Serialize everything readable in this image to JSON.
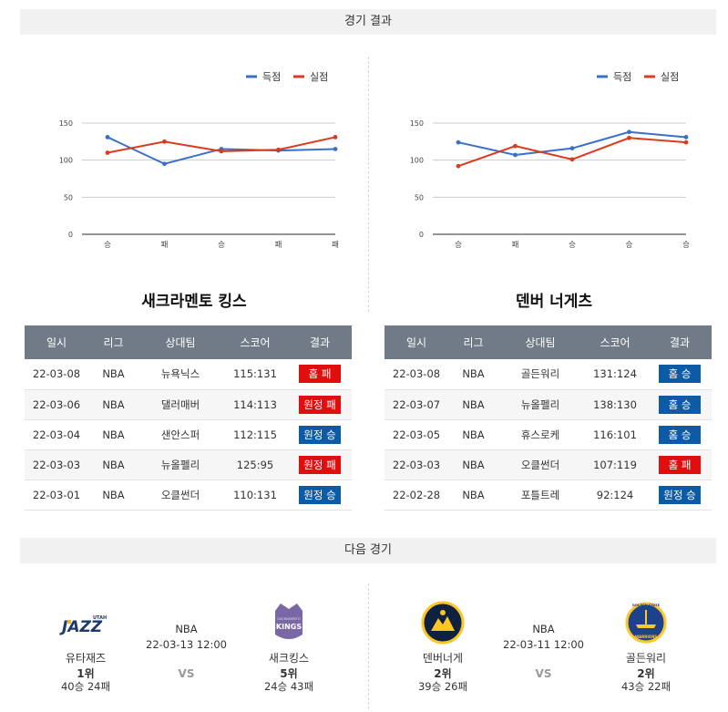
{
  "sections": {
    "results_title": "경기 결과",
    "next_title": "다음 경기"
  },
  "legend": {
    "scored": "득점",
    "conceded": "실점"
  },
  "colors": {
    "scored": "#3b6fc9",
    "conceded": "#d93b1e",
    "win": "#0d5aa7",
    "loss": "#e10e0e",
    "header": "#707b87"
  },
  "chart_data": [
    {
      "type": "line",
      "categories": [
        "승",
        "패",
        "승",
        "패",
        "패"
      ],
      "series": [
        {
          "name": "득점",
          "values": [
            131,
            95,
            115,
            113,
            115
          ]
        },
        {
          "name": "실점",
          "values": [
            110,
            125,
            112,
            114,
            131
          ]
        }
      ],
      "yticks": [
        0,
        50,
        100,
        150
      ],
      "ylim": [
        0,
        150
      ],
      "legend": "top-right",
      "grid": true
    },
    {
      "type": "line",
      "categories": [
        "승",
        "패",
        "승",
        "승",
        "승"
      ],
      "series": [
        {
          "name": "득점",
          "values": [
            124,
            107,
            116,
            138,
            131
          ]
        },
        {
          "name": "실점",
          "values": [
            92,
            119,
            101,
            130,
            124
          ]
        }
      ],
      "yticks": [
        0,
        50,
        100,
        150
      ],
      "ylim": [
        0,
        150
      ],
      "legend": "top-right",
      "grid": true
    }
  ],
  "teams": [
    {
      "name": "새크라멘토 킹스",
      "columns": [
        "일시",
        "리그",
        "상대팀",
        "스코어",
        "결과"
      ],
      "rows": [
        {
          "date": "22-03-08",
          "league": "NBA",
          "opponent": "뉴욕닉스",
          "score": "115:131",
          "result": "홈 패",
          "win": false
        },
        {
          "date": "22-03-06",
          "league": "NBA",
          "opponent": "댈러매버",
          "score": "114:113",
          "result": "원정 패",
          "win": false
        },
        {
          "date": "22-03-04",
          "league": "NBA",
          "opponent": "샌안스퍼",
          "score": "112:115",
          "result": "원정 승",
          "win": true
        },
        {
          "date": "22-03-03",
          "league": "NBA",
          "opponent": "뉴올펠리",
          "score": "125:95",
          "result": "원정 패",
          "win": false
        },
        {
          "date": "22-03-01",
          "league": "NBA",
          "opponent": "오클썬더",
          "score": "110:131",
          "result": "원정 승",
          "win": true
        }
      ]
    },
    {
      "name": "덴버 너게츠",
      "columns": [
        "일시",
        "리그",
        "상대팀",
        "스코어",
        "결과"
      ],
      "rows": [
        {
          "date": "22-03-08",
          "league": "NBA",
          "opponent": "골든워리",
          "score": "131:124",
          "result": "홈 승",
          "win": true
        },
        {
          "date": "22-03-07",
          "league": "NBA",
          "opponent": "뉴올펠리",
          "score": "138:130",
          "result": "홈 승",
          "win": true
        },
        {
          "date": "22-03-05",
          "league": "NBA",
          "opponent": "휴스로케",
          "score": "116:101",
          "result": "홈 승",
          "win": true
        },
        {
          "date": "22-03-03",
          "league": "NBA",
          "opponent": "오클썬더",
          "score": "107:119",
          "result": "홈 패",
          "win": false
        },
        {
          "date": "22-02-28",
          "league": "NBA",
          "opponent": "포틀트레",
          "score": "92:124",
          "result": "원정 승",
          "win": true
        }
      ]
    }
  ],
  "next_matches": [
    {
      "league": "NBA",
      "time": "22-03-13 12:00",
      "vs": "VS",
      "home": {
        "name": "유타재즈",
        "rank": "1위",
        "record": "40승 24패",
        "logo_text": "JAZZ",
        "logo_small": "UTAH"
      },
      "away": {
        "name": "새크킹스",
        "rank": "5위",
        "record": "24승 43패",
        "logo_text": "KINGS",
        "logo_small": "SACRAMENTO"
      }
    },
    {
      "league": "NBA",
      "time": "22-03-11 12:00",
      "vs": "VS",
      "home": {
        "name": "덴버너게",
        "rank": "2위",
        "record": "39승 26패"
      },
      "away": {
        "name": "골든워리",
        "rank": "2위",
        "record": "43승 22패",
        "logo_small": "GOLDEN STATE",
        "logo_text": "WARRIORS"
      }
    }
  ]
}
